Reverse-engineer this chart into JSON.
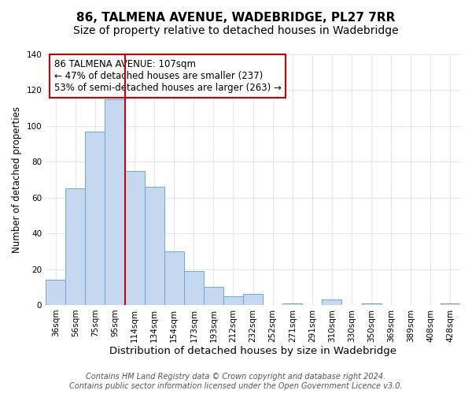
{
  "title": "86, TALMENA AVENUE, WADEBRIDGE, PL27 7RR",
  "subtitle": "Size of property relative to detached houses in Wadebridge",
  "xlabel": "Distribution of detached houses by size in Wadebridge",
  "ylabel": "Number of detached properties",
  "bar_labels": [
    "36sqm",
    "56sqm",
    "75sqm",
    "95sqm",
    "114sqm",
    "134sqm",
    "154sqm",
    "173sqm",
    "193sqm",
    "212sqm",
    "232sqm",
    "252sqm",
    "271sqm",
    "291sqm",
    "310sqm",
    "330sqm",
    "350sqm",
    "369sqm",
    "389sqm",
    "408sqm",
    "428sqm"
  ],
  "bar_values": [
    14,
    65,
    97,
    115,
    75,
    66,
    30,
    19,
    10,
    5,
    6,
    0,
    1,
    0,
    3,
    0,
    1,
    0,
    0,
    0,
    1
  ],
  "bar_color": "#c5d8f0",
  "bar_edgecolor": "#6aaad4",
  "vline_color": "#cc0000",
  "annotation_text": "86 TALMENA AVENUE: 107sqm\n← 47% of detached houses are smaller (237)\n53% of semi-detached houses are larger (263) →",
  "annotation_box_edgecolor": "#cc0000",
  "ylim": [
    0,
    140
  ],
  "yticks": [
    0,
    20,
    40,
    60,
    80,
    100,
    120,
    140
  ],
  "footer1": "Contains HM Land Registry data © Crown copyright and database right 2024.",
  "footer2": "Contains public sector information licensed under the Open Government Licence v3.0.",
  "bg_color": "#ffffff",
  "plot_bg_color": "#ffffff",
  "grid_color": "#dce8f5",
  "title_fontsize": 11,
  "subtitle_fontsize": 10,
  "xlabel_fontsize": 9.5,
  "ylabel_fontsize": 8.5,
  "tick_fontsize": 7.5,
  "annotation_fontsize": 8.5,
  "footer_fontsize": 7
}
